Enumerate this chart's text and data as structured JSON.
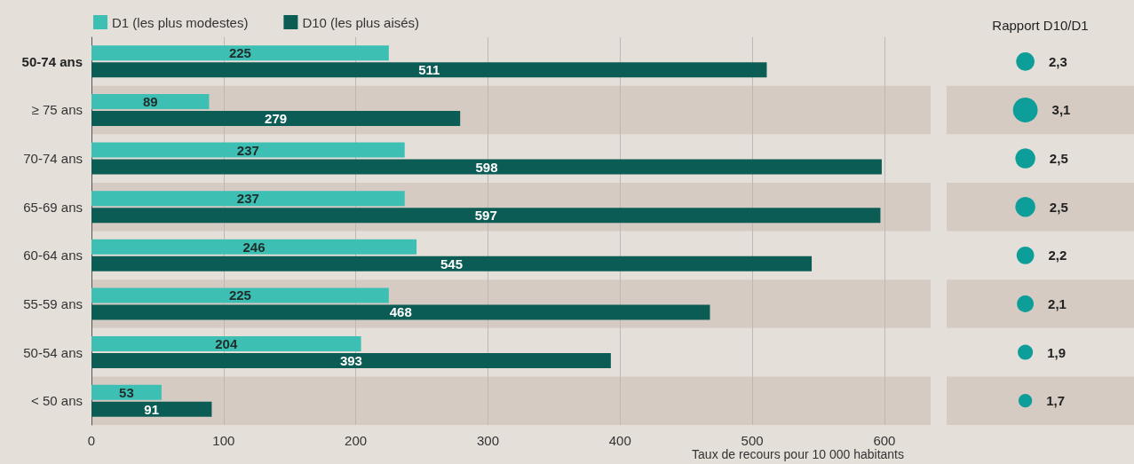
{
  "chart_data": [
    {
      "type": "bar",
      "orientation": "horizontal",
      "categories": [
        "50-74 ans",
        "≥ 75 ans",
        "70-74 ans",
        "65-69 ans",
        "60-64 ans",
        "55-59 ans",
        "50-54 ans",
        "< 50 ans"
      ],
      "series": [
        {
          "name": "D1 (les plus modestes)",
          "color": "#3dbfb4",
          "values": [
            225,
            89,
            237,
            237,
            246,
            225,
            204,
            53
          ]
        },
        {
          "name": "D10 (les plus aisés)",
          "color": "#0b5c55",
          "values": [
            511,
            279,
            598,
            597,
            545,
            468,
            393,
            91
          ]
        }
      ],
      "xlabel": "Taux de recours pour 10 000 habitants",
      "xlim": [
        0,
        635
      ],
      "xticks": [
        0,
        100,
        200,
        300,
        400,
        500,
        600
      ],
      "grid": "x",
      "legend": "top left",
      "data_labels": true
    },
    {
      "type": "other",
      "title": "Rapport D10/D1",
      "values": [
        2.3,
        3.1,
        2.5,
        2.5,
        2.2,
        2.1,
        1.9,
        1.7
      ],
      "value_labels": [
        "2,3",
        "3,1",
        "2,5",
        "2,5",
        "2,2",
        "2,1",
        "1,9",
        "1,7"
      ],
      "color": "#0e9e9a"
    }
  ]
}
